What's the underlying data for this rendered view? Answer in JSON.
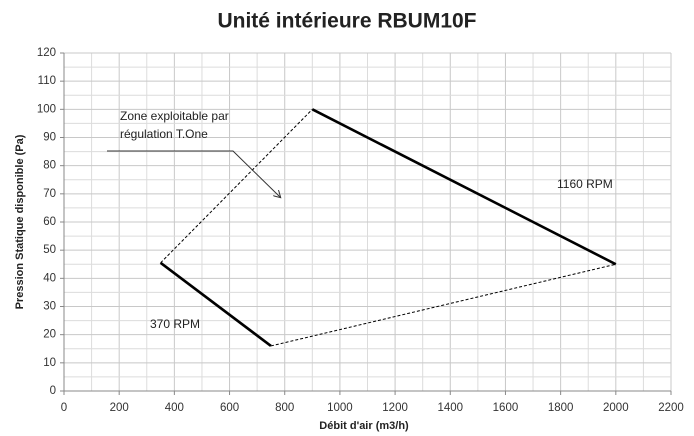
{
  "chart_data": {
    "type": "line",
    "title": "Unité intérieure RBUM10F",
    "xlabel": "Débit d'air (m3/h)",
    "ylabel": "Pression Statique disponible (Pa)",
    "xlim": [
      0,
      2200
    ],
    "ylim": [
      0,
      120
    ],
    "xticks": [
      0,
      200,
      400,
      600,
      800,
      1000,
      1200,
      1400,
      1600,
      1800,
      2000,
      2200
    ],
    "yticks": [
      0,
      10,
      20,
      30,
      40,
      50,
      60,
      70,
      80,
      90,
      100,
      110,
      120
    ],
    "grid": true,
    "series": [
      {
        "name": "370 RPM",
        "color": "#000000",
        "line_style": "solid",
        "x": [
          350,
          750
        ],
        "values": [
          45.5,
          16
        ]
      },
      {
        "name": "1160 RPM",
        "color": "#000000",
        "line_style": "solid",
        "x": [
          900,
          2000
        ],
        "values": [
          100,
          45
        ]
      },
      {
        "color": "#000000",
        "line_style": "dashed",
        "x": [
          350,
          900
        ],
        "values": [
          45.5,
          100
        ]
      },
      {
        "color": "#000000",
        "line_style": "dashed",
        "x": [
          750,
          2000
        ],
        "values": [
          16,
          45
        ]
      }
    ],
    "annotation": [
      "Zone exploitable par",
      "régulation T.One"
    ]
  }
}
